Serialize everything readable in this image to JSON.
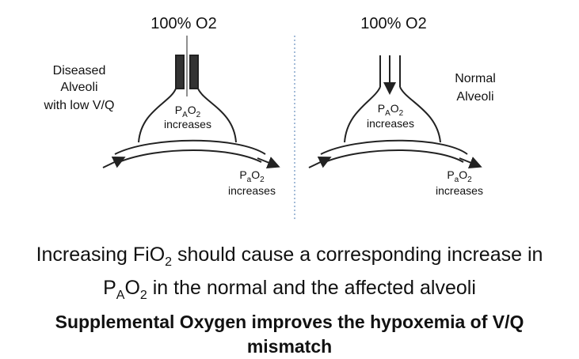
{
  "left": {
    "gas": "100% O2",
    "side_label": [
      "Diseased",
      "Alveoli",
      "with low V/Q"
    ],
    "alveolar": {
      "p": "P",
      "sub": "A",
      "o": "O",
      "sub2": "2",
      "text": "increases"
    },
    "arterial": {
      "p": "P",
      "sub": "a",
      "o": "O",
      "sub2": "2",
      "text": "increases"
    }
  },
  "right": {
    "gas": "100% O2",
    "side_label": [
      "Normal",
      "Alveoli"
    ],
    "alveolar": {
      "p": "P",
      "sub": "A",
      "o": "O",
      "sub2": "2",
      "text": "increases"
    },
    "arterial": {
      "p": "P",
      "sub": "a",
      "o": "O",
      "sub2": "2",
      "text": "increases"
    }
  },
  "caption": {
    "line1": [
      "Increasing FiO",
      "2",
      "should cause a corresponding increase in"
    ],
    "line2": [
      "P",
      "A",
      "O",
      "2",
      "in the normal and the affected alveoli"
    ],
    "conclusion": "Supplemental Oxygen improves the hypoxemia of V/Q mismatch"
  }
}
